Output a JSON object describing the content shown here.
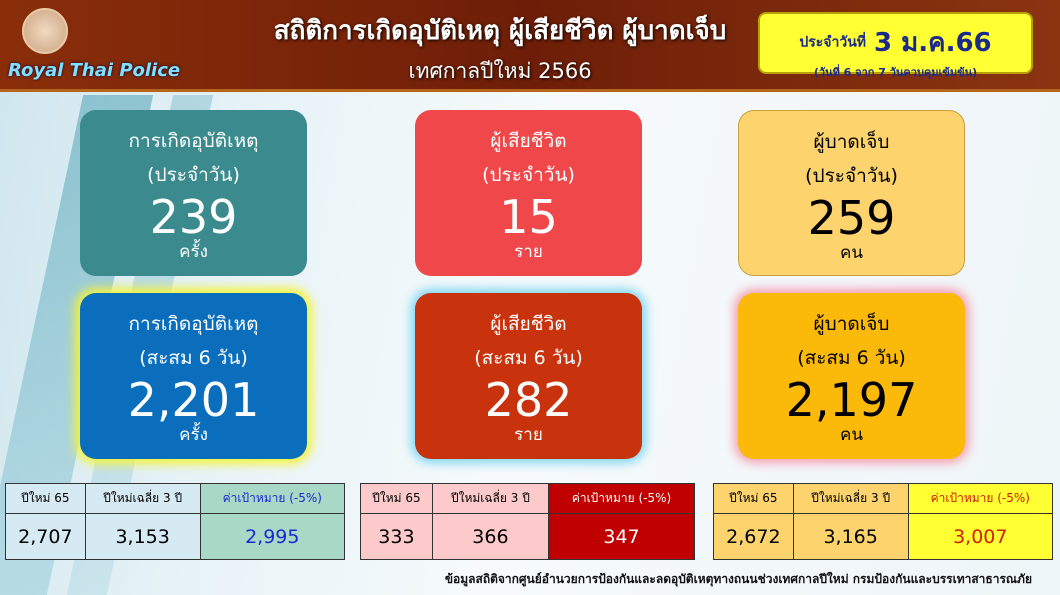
{
  "header": {
    "logo_text": "Royal Thai Police",
    "title": "สถิติการเกิดอุบัติเหตุ ผู้เสียชีวิต ผู้บาดเจ็บ",
    "subtitle": "เทศกาลปีใหม่ 2566",
    "date_label": "ประจำวันที่",
    "date": "3 ม.ค.66",
    "date_note": "(วันที่ 6 จาก 7 วันควบคุมเข้มข้น)"
  },
  "cards": [
    {
      "title": "การเกิดอุบัติเหตุ",
      "period": "(ประจำวัน)",
      "value": "239",
      "unit": "ครั้ง",
      "color": "#3a8a8e"
    },
    {
      "title": "ผู้เสียชีวิต",
      "period": "(ประจำวัน)",
      "value": "15",
      "unit": "ราย",
      "color": "#f0484a"
    },
    {
      "title": "ผู้บาดเจ็บ",
      "period": "(ประจำวัน)",
      "value": "259",
      "unit": "คน",
      "color": "#fcd36c"
    },
    {
      "title": "การเกิดอุบัติเหตุ",
      "period": "(สะสม 6 วัน)",
      "value": "2,201",
      "unit": "ครั้ง",
      "color": "#0a6ebd"
    },
    {
      "title": "ผู้เสียชีวิต",
      "period": "(สะสม 6 วัน)",
      "value": "282",
      "unit": "ราย",
      "color": "#c8320c"
    },
    {
      "title": "ผู้บาดเจ็บ",
      "period": "(สะสม 6 วัน)",
      "value": "2,197",
      "unit": "คน",
      "color": "#fbb90a"
    }
  ],
  "tables": [
    {
      "headers": [
        "ปีใหม่ 65",
        "ปีใหม่เฉลี่ย 3 ปี",
        "ค่าเป้าหมาย (-5%)"
      ],
      "values": [
        "2,707",
        "3,153",
        "2,995"
      ]
    },
    {
      "headers": [
        "ปีใหม่ 65",
        "ปีใหม่เฉลี่ย 3 ปี",
        "ค่าเป้าหมาย (-5%)"
      ],
      "values": [
        "333",
        "366",
        "347"
      ]
    },
    {
      "headers": [
        "ปีใหม่ 65",
        "ปีใหม่เฉลี่ย 3 ปี",
        "ค่าเป้าหมาย (-5%)"
      ],
      "values": [
        "2,672",
        "3,165",
        "3,007"
      ]
    }
  ],
  "footer": "ข้อมูลสถิติจากศูนย์อำนวยการป้องกันและลดอุบัติเหตุทางถนนช่วงเทศกาลปีใหม่ กรมป้องกันและบรรเทาสาธารณภัย"
}
